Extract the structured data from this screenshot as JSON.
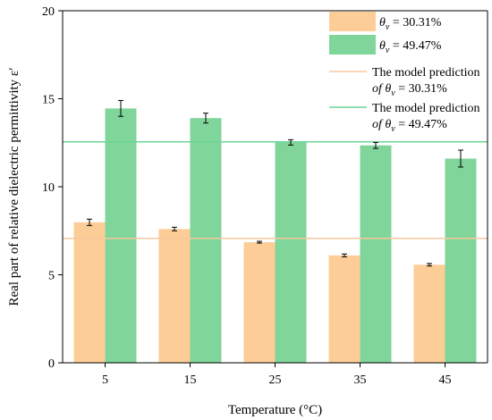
{
  "chart_data": {
    "type": "bar",
    "categories": [
      "5",
      "15",
      "25",
      "35",
      "45"
    ],
    "xlabel": "Temperature (°C)",
    "ylabel": "Real part of relative dielectric permittivity ε′",
    "ylim": [
      0,
      20
    ],
    "yticks": [
      "0",
      "5",
      "10",
      "15",
      "20"
    ],
    "grid": false,
    "legend_position": "top-right",
    "series": [
      {
        "name": "θv = 30.31%",
        "name_prefix": "θ",
        "name_sub": "v",
        "name_suffix": " = 30.31%",
        "color": "#FDCD98",
        "values": [
          7.98,
          7.6,
          6.85,
          6.1,
          5.57
        ],
        "errors": [
          0.18,
          0.1,
          0.05,
          0.08,
          0.07
        ]
      },
      {
        "name": "θv = 49.47%",
        "name_prefix": "θ",
        "name_sub": "v",
        "name_suffix": " = 49.47%",
        "color": "#7FD59A",
        "values": [
          14.45,
          13.9,
          12.52,
          12.35,
          11.6
        ],
        "errors": [
          0.45,
          0.28,
          0.15,
          0.17,
          0.48
        ]
      }
    ],
    "reference_lines": [
      {
        "line1": "The model prediction",
        "line2_prefix": "of  θ",
        "line2_sub": "v",
        "line2_suffix": " = 30.31%",
        "value": 7.07,
        "color": "#F8C79E"
      },
      {
        "line1": "The model prediction",
        "line2_prefix": "of  θ",
        "line2_sub": "v",
        "line2_suffix": " = 49.47%",
        "value": 12.55,
        "color": "#6ED497"
      }
    ]
  }
}
